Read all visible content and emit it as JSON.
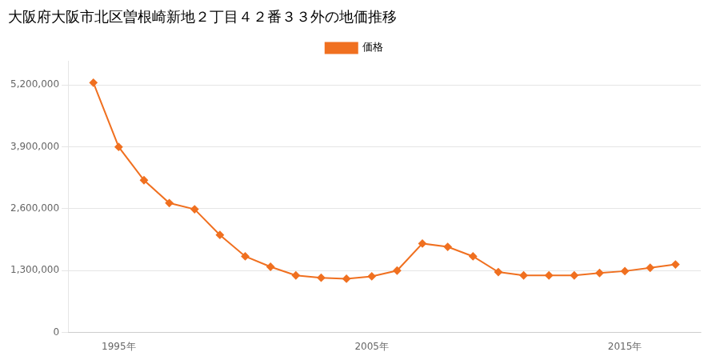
{
  "chart_data": {
    "type": "line",
    "title": "大阪府大阪市北区曽根崎新地２丁目４２番３３外の地価推移",
    "x": [
      1994,
      1995,
      1996,
      1997,
      1998,
      1999,
      2000,
      2001,
      2002,
      2003,
      2004,
      2005,
      2006,
      2007,
      2008,
      2009,
      2010,
      2011,
      2012,
      2013,
      2014,
      2015,
      2016,
      2017
    ],
    "series": [
      {
        "name": "価格",
        "color": "#f07020",
        "marker": "diamond",
        "line_style": "solid",
        "values": [
          5250000,
          3900000,
          3200000,
          2720000,
          2590000,
          2050000,
          1600000,
          1380000,
          1200000,
          1150000,
          1130000,
          1180000,
          1300000,
          1870000,
          1800000,
          1600000,
          1270000,
          1200000,
          1200000,
          1200000,
          1250000,
          1290000,
          1360000,
          1430000
        ]
      }
    ],
    "xlim": [
      1993,
      2018
    ],
    "xticks": [
      {
        "value": 1995,
        "label": "1995年"
      },
      {
        "value": 2005,
        "label": "2005年"
      },
      {
        "value": 2015,
        "label": "2015年"
      }
    ],
    "ylim": [
      0,
      5700000
    ],
    "yticks": [
      0,
      {
        "value": 1300000,
        "label": "1,300,000"
      },
      {
        "value": 2600000,
        "label": "2,600,000"
      },
      {
        "value": 3900000,
        "label": "3,900,000"
      },
      {
        "value": 5200000,
        "label": "5,200,000"
      }
    ],
    "grid": "y",
    "legend": "top"
  }
}
